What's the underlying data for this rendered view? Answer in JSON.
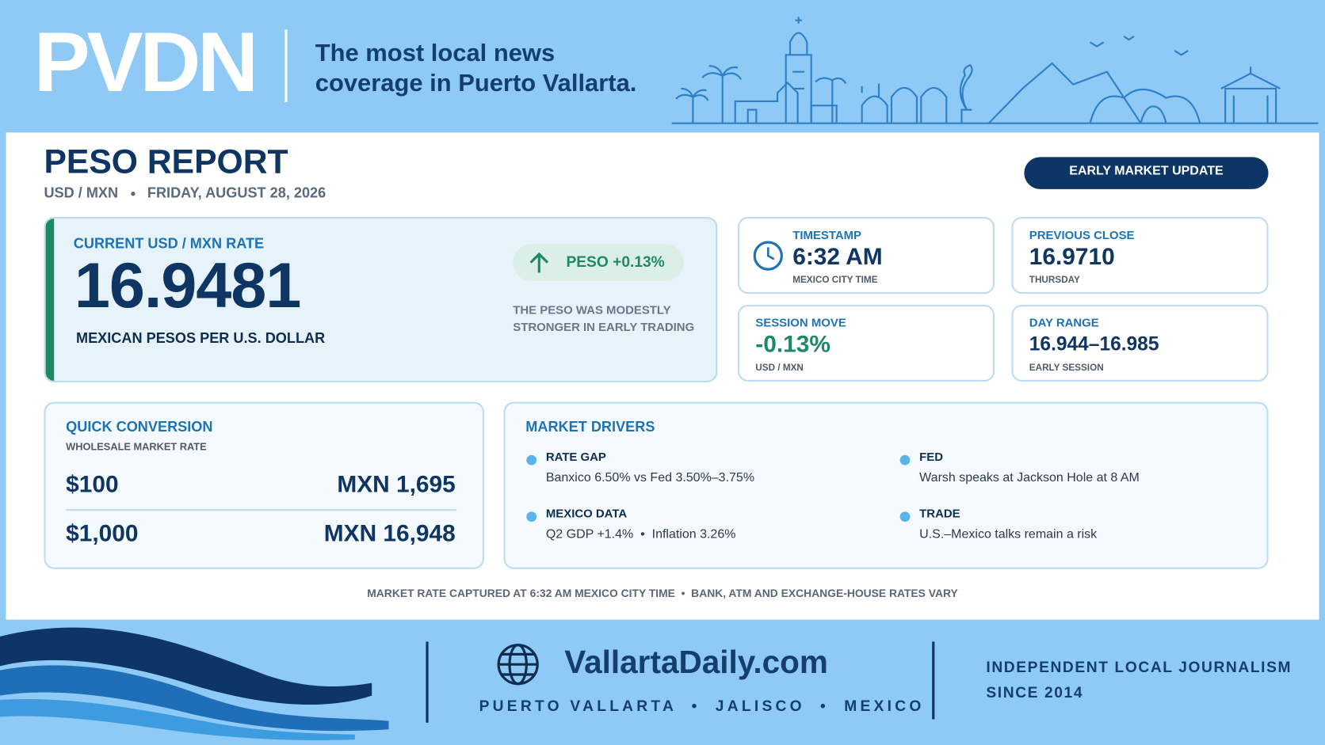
{
  "header": {
    "brand": "PVDN",
    "tagline_lines": [
      "The most local news",
      "coverage in Puerto Vallarta."
    ]
  },
  "report": {
    "title": "PESO REPORT",
    "pair": "USD / MXN",
    "date": "FRIDAY, AUGUST 28, 2026",
    "badge": "EARLY MARKET UPDATE"
  },
  "current": {
    "label": "CURRENT USD / MXN RATE",
    "value": "16.9481",
    "description": "MEXICAN PESOS PER U.S. DOLLAR",
    "change": "PESO +0.13%",
    "note": "THE PESO WAS MODESTLY STRONGER IN EARLY TRADING"
  },
  "stats": [
    {
      "label": "TIMESTAMP",
      "value": "6:32 AM",
      "sub": "MEXICO CITY TIME"
    },
    {
      "label": "PREVIOUS CLOSE",
      "value": "16.9710",
      "sub": "THURSDAY"
    },
    {
      "label": "SESSION MOVE",
      "value": "-0.13%",
      "sub": "USD / MXN"
    },
    {
      "label": "DAY RANGE",
      "value": "16.944–16.985",
      "sub": "EARLY SESSION"
    }
  ],
  "conversion": {
    "title": "QUICK CONVERSION",
    "subtitle": "WHOLESALE MARKET RATE",
    "rows": [
      [
        "$100",
        "MXN 1,695"
      ],
      [
        "$1,000",
        "MXN 16,948"
      ]
    ]
  },
  "drivers": {
    "title": "MARKET DRIVERS",
    "items": [
      {
        "label": "RATE GAP",
        "text": "Banxico 6.50% vs Fed 3.50%–3.75%"
      },
      {
        "label": "FED",
        "text": "Warsh speaks at Jackson Hole at 8 AM"
      },
      {
        "label": "MEXICO DATA",
        "text": "Q2 GDP +1.4%  •  Inflation 3.26%"
      },
      {
        "label": "TRADE",
        "text": "U.S.–Mexico talks remain a risk"
      }
    ]
  },
  "footnote": "MARKET RATE CAPTURED AT 6:32 AM MEXICO CITY TIME  •  BANK, ATM AND EXCHANGE-HOUSE RATES VARY",
  "footer": {
    "site": "VallartaDaily.com",
    "location": "PUERTO VALLARTA  •  JALISCO  •  MEXICO",
    "motto_lines": [
      "INDEPENDENT LOCAL JOURNALISM",
      "SINCE 2014"
    ]
  }
}
